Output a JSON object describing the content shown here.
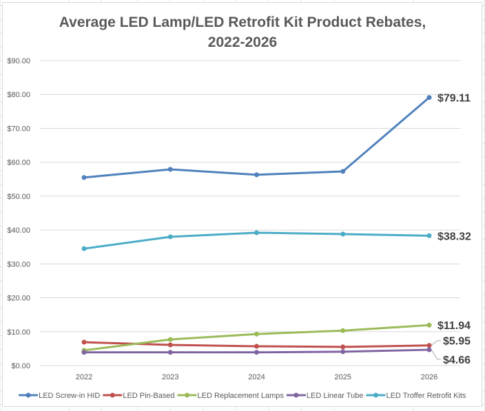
{
  "chart_data": {
    "type": "line",
    "title_lines": [
      "Average LED Lamp/LED Retrofit Kit Product Rebates,",
      "2022-2026"
    ],
    "xlabel": "",
    "ylabel": "",
    "categories": [
      "2022",
      "2023",
      "2024",
      "2025",
      "2026"
    ],
    "ylim": [
      0,
      90
    ],
    "y_ticks": [
      0,
      10,
      20,
      30,
      40,
      50,
      60,
      70,
      80,
      90
    ],
    "y_tick_labels": [
      "$0.00",
      "$10.00",
      "$20.00",
      "$30.00",
      "$40.00",
      "$50.00",
      "$60.00",
      "$70.00",
      "$80.00",
      "$90.00"
    ],
    "grid": true,
    "legend_position": "bottom",
    "series": [
      {
        "name": "LED Screw-in HID",
        "color": "#4f81bd",
        "values": [
          55.5,
          57.9,
          56.3,
          57.3,
          79.11
        ],
        "end_label": "$79.11"
      },
      {
        "name": "LED Pin-Based",
        "color": "#c0504d",
        "values": [
          6.9,
          6.1,
          5.7,
          5.5,
          5.95
        ],
        "end_label": "$5.95"
      },
      {
        "name": "LED Replacement Lamps",
        "color": "#9bbb59",
        "values": [
          4.5,
          7.7,
          9.3,
          10.3,
          11.94
        ],
        "end_label": "$11.94"
      },
      {
        "name": "LED Linear Tube",
        "color": "#8064a2",
        "values": [
          3.9,
          3.9,
          3.9,
          4.1,
          4.66
        ],
        "end_label": "$4.66"
      },
      {
        "name": "LED Troffer Retrofit Kits",
        "color": "#4bacc6",
        "values": [
          34.5,
          38.0,
          39.2,
          38.8,
          38.32
        ],
        "end_label": "$38.32"
      }
    ]
  }
}
